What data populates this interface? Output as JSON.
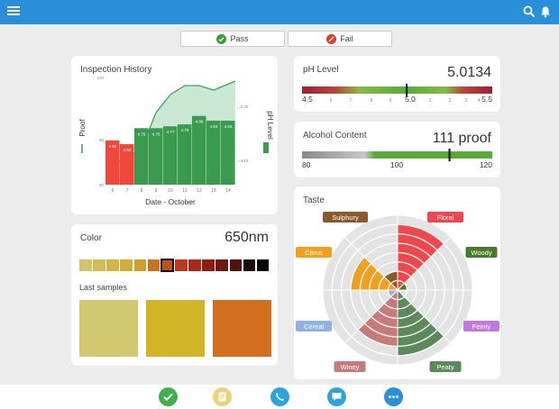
{
  "buttons": {
    "pass": "Pass",
    "fail": "Fail"
  },
  "inspection": {
    "title": "Inspection History",
    "xlabel": "Date - October",
    "ylabel_left": "Proof",
    "ylabel_right": "pH Level",
    "left_ticks": [
      "80",
      "90",
      "100"
    ],
    "right_ticks": [
      "4.15",
      "5.25"
    ],
    "x_ticks": [
      "6",
      "7",
      "8",
      "9",
      "10",
      "11",
      "12",
      "13",
      "14"
    ],
    "bar_labels": [
      "4.62",
      "4.58",
      "4.75",
      "4.75",
      "4.77",
      "4.79",
      "4.88",
      "4.83",
      "4.83"
    ]
  },
  "chart_data": {
    "type": "bar",
    "title": "Inspection History",
    "xlabel": "Date - October",
    "ylabel": "Proof",
    "x": [
      6,
      7,
      8,
      9,
      10,
      11,
      12,
      13,
      14
    ],
    "series": [
      {
        "name": "pH Level",
        "values": [
          4.62,
          4.58,
          4.75,
          4.75,
          4.77,
          4.79,
          4.88,
          4.83,
          4.83
        ]
      },
      {
        "name": "Proof",
        "values": [
          84,
          86,
          88,
          96,
          100,
          102,
          102,
          101,
          103
        ]
      }
    ],
    "ylim_left": [
      80,
      103
    ],
    "ylim_right": [
      4.15,
      5.25
    ]
  },
  "ph": {
    "title": "pH Level",
    "value": "5.0134",
    "scale_labels": [
      "4.5",
      "6",
      "7",
      "8",
      "9",
      "5.0",
      "1",
      "2",
      "3",
      "4",
      "5.5"
    ],
    "marker_fraction": 0.55
  },
  "alcohol": {
    "title": "Alcohol Content",
    "value": "111 proof",
    "scale_labels": [
      "80",
      "100",
      "120"
    ],
    "marker_fraction": 0.775
  },
  "taste": {
    "title": "Taste",
    "labels": {
      "sulphury": "Sulphury",
      "floral": "Floral",
      "citrus": "Citrus",
      "woody": "Woody",
      "cereal": "Cereal",
      "feinty": "Feinty",
      "winey": "Winey",
      "peaty": "Peaty"
    },
    "colors": {
      "floral": "#f0474d",
      "woody": "#4d7a2a",
      "feinty": "#c27ad9",
      "peaty": "#5c8a5a",
      "winey": "#c67a7a",
      "cereal": "#8fb3e0",
      "citrus": "#f0a01f",
      "sulphury": "#8b5a2b"
    },
    "levels": {
      "floral": 7,
      "woody": 1,
      "feinty": 0,
      "peaty": 7,
      "winey": 6,
      "cereal": 1,
      "citrus": 5,
      "sulphury": 2
    }
  },
  "color": {
    "title": "Color",
    "value": "650nm",
    "swatches": [
      "#d5c06d",
      "#d4bc55",
      "#d3b545",
      "#d2ad38",
      "#d19e2c",
      "#c8731e",
      "#c0521c",
      "#b8391e",
      "#a6291d",
      "#8a1e17",
      "#6e1813",
      "#4e120f",
      "#1a0808",
      "#000000"
    ],
    "selected_index": 6,
    "samples_label": "Last samples",
    "samples": [
      "#d3c86f",
      "#d2b428",
      "#d26e1d"
    ]
  },
  "icons": {
    "menu": "hamburger-menu-icon",
    "search": "search-icon",
    "bell": "bell-icon",
    "nav": [
      "check-icon",
      "notes-icon",
      "phone-icon",
      "chat-icon",
      "more-icon"
    ],
    "nav_colors": [
      "#3fb04b",
      "#e8d27a",
      "#2ba4d9",
      "#2ba4d9",
      "#2a8fd9"
    ]
  }
}
